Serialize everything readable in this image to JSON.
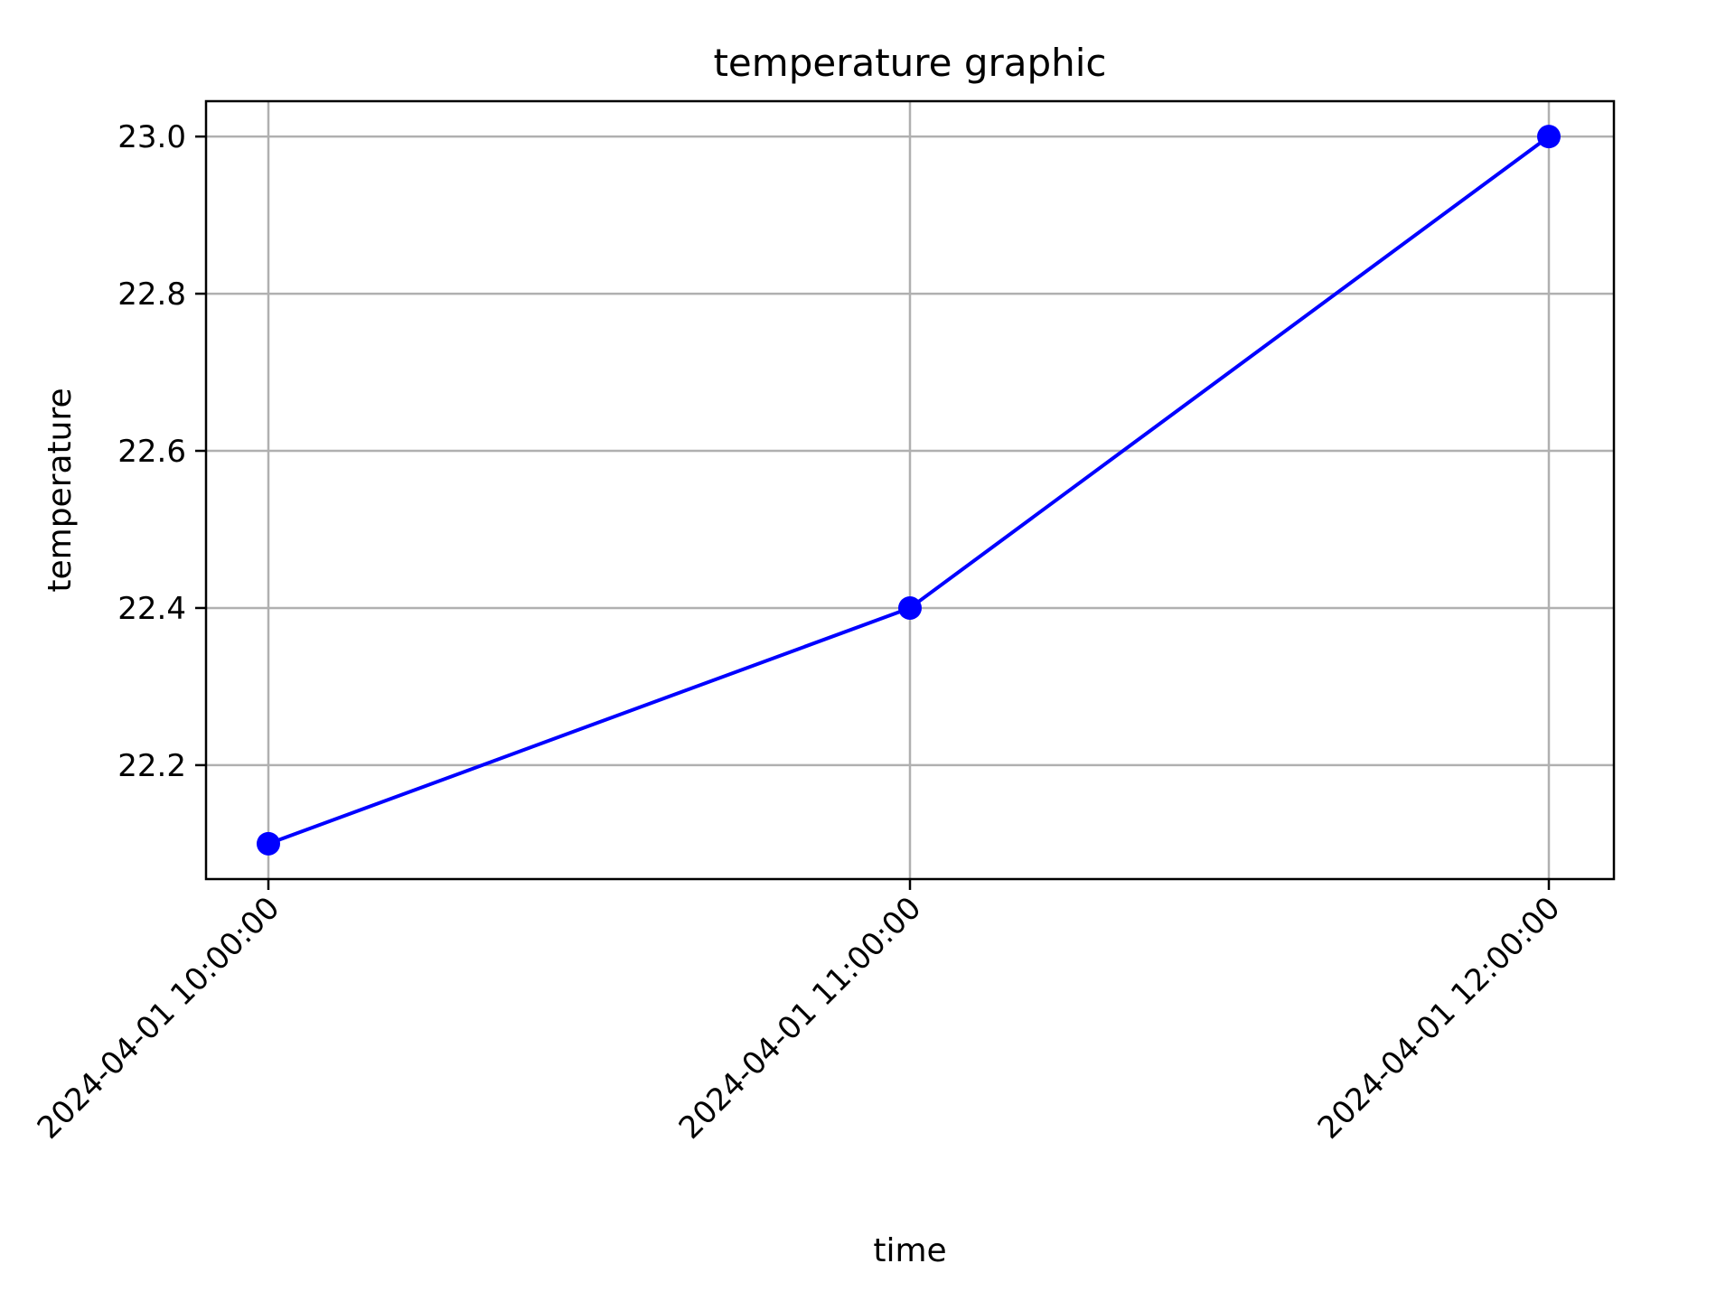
{
  "chart_data": {
    "type": "line",
    "title": "temperature graphic",
    "xlabel": "time",
    "ylabel": "temperature",
    "x": [
      "2024-04-01 10:00:00",
      "2024-04-01 11:00:00",
      "2024-04-01 12:00:00"
    ],
    "series": [
      {
        "values": [
          22.1,
          22.4,
          23.0
        ],
        "color": "#0000ff",
        "marker": "circle"
      }
    ],
    "ylim": [
      22.055,
      23.045
    ],
    "yticks": [
      22.2,
      22.4,
      22.6,
      22.8,
      23.0
    ],
    "ytick_labels": [
      "22.2",
      "22.4",
      "22.6",
      "22.8",
      "23.0"
    ],
    "grid": true,
    "legend": null
  }
}
